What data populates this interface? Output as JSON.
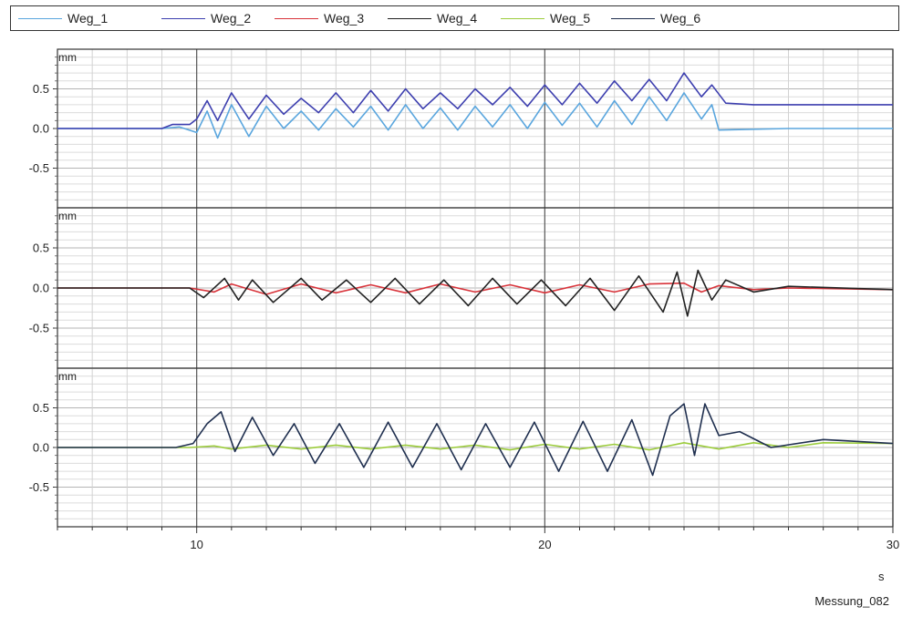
{
  "chart_data": {
    "type": "line",
    "legend_placement": "top",
    "x_unit": "s",
    "xlim": [
      6,
      30
    ],
    "x_ticks": [
      10,
      20,
      30
    ],
    "grid": true,
    "series_legend": [
      {
        "name": "Weg_1",
        "color": "#5aa6de"
      },
      {
        "name": "Weg_2",
        "color": "#3d3faf"
      },
      {
        "name": "Weg_3",
        "color": "#d8333a"
      },
      {
        "name": "Weg_4",
        "color": "#222222"
      },
      {
        "name": "Weg_5",
        "color": "#9ccc3c"
      },
      {
        "name": "Weg_6",
        "color": "#1f2f4f"
      }
    ],
    "panels": [
      {
        "y_unit": "mm",
        "ylim": [
          -1.0,
          1.0
        ],
        "y_ticks": [
          0.5,
          0.0,
          -0.5
        ],
        "y_tick_labels": [
          "0.5",
          "0.0",
          "-0.5"
        ],
        "series": [
          {
            "name": "Weg_1",
            "color": "#5aa6de",
            "x": [
              6,
              9,
              9.5,
              10,
              10.3,
              10.6,
              11,
              11.5,
              12,
              12.5,
              13,
              13.5,
              14,
              14.5,
              15,
              15.5,
              16,
              16.5,
              17,
              17.5,
              18,
              18.5,
              19,
              19.5,
              20,
              20.5,
              21,
              21.5,
              22,
              22.5,
              23,
              23.5,
              24,
              24.5,
              24.8,
              25,
              27,
              30
            ],
            "y": [
              0,
              0,
              0.02,
              -0.05,
              0.22,
              -0.12,
              0.3,
              -0.1,
              0.28,
              0,
              0.22,
              -0.02,
              0.25,
              0.02,
              0.28,
              -0.02,
              0.3,
              0.0,
              0.26,
              -0.02,
              0.28,
              0.02,
              0.3,
              0.0,
              0.33,
              0.04,
              0.32,
              0.02,
              0.35,
              0.05,
              0.4,
              0.1,
              0.45,
              0.12,
              0.3,
              -0.02,
              0,
              0
            ]
          },
          {
            "name": "Weg_2",
            "color": "#3d3faf",
            "x": [
              6,
              9,
              9.3,
              9.8,
              10,
              10.3,
              10.6,
              11,
              11.5,
              12,
              12.5,
              13,
              13.5,
              14,
              14.5,
              15,
              15.5,
              16,
              16.5,
              17,
              17.5,
              18,
              18.5,
              19,
              19.5,
              20,
              20.5,
              21,
              21.5,
              22,
              22.5,
              23,
              23.5,
              24,
              24.5,
              24.8,
              25.2,
              26,
              28,
              30
            ],
            "y": [
              0,
              0,
              0.05,
              0.05,
              0.12,
              0.35,
              0.1,
              0.45,
              0.12,
              0.42,
              0.18,
              0.38,
              0.2,
              0.45,
              0.2,
              0.48,
              0.22,
              0.5,
              0.25,
              0.45,
              0.25,
              0.5,
              0.3,
              0.52,
              0.28,
              0.55,
              0.3,
              0.57,
              0.32,
              0.6,
              0.35,
              0.62,
              0.35,
              0.7,
              0.4,
              0.55,
              0.32,
              0.3,
              0.3,
              0.3
            ]
          }
        ]
      },
      {
        "y_unit": "mm",
        "ylim": [
          -1.0,
          1.0
        ],
        "y_ticks": [
          0.5,
          0.0,
          -0.5
        ],
        "y_tick_labels": [
          "0.5",
          "0.0",
          "-0.5"
        ],
        "series": [
          {
            "name": "Weg_3",
            "color": "#d8333a",
            "x": [
              6,
              9.8,
              10.5,
              11,
              12,
              13,
              14,
              15,
              16,
              17,
              18,
              19,
              20,
              21,
              22,
              23,
              24,
              24.5,
              25,
              26,
              27,
              30
            ],
            "y": [
              0,
              0,
              -0.05,
              0.05,
              -0.08,
              0.05,
              -0.06,
              0.04,
              -0.06,
              0.05,
              -0.05,
              0.04,
              -0.06,
              0.04,
              -0.05,
              0.05,
              0.06,
              -0.05,
              0.03,
              -0.02,
              0,
              -0.02
            ]
          },
          {
            "name": "Weg_4",
            "color": "#222222",
            "x": [
              6,
              9.8,
              10.2,
              10.8,
              11.2,
              11.6,
              12.2,
              13,
              13.6,
              14.3,
              15,
              15.7,
              16.4,
              17.1,
              17.8,
              18.5,
              19.2,
              19.9,
              20.6,
              21.3,
              22,
              22.7,
              23.4,
              23.8,
              24.1,
              24.4,
              24.8,
              25.2,
              26,
              27,
              30
            ],
            "y": [
              0,
              0,
              -0.12,
              0.12,
              -0.15,
              0.1,
              -0.18,
              0.12,
              -0.15,
              0.1,
              -0.18,
              0.12,
              -0.2,
              0.1,
              -0.22,
              0.12,
              -0.2,
              0.1,
              -0.22,
              0.12,
              -0.28,
              0.15,
              -0.3,
              0.2,
              -0.35,
              0.22,
              -0.15,
              0.1,
              -0.05,
              0.02,
              -0.02
            ]
          }
        ]
      },
      {
        "y_unit": "mm",
        "ylim": [
          -1.0,
          1.0
        ],
        "y_ticks": [
          0.5,
          0.0,
          -0.5
        ],
        "y_tick_labels": [
          "0.5",
          "0.0",
          "-0.5"
        ],
        "series": [
          {
            "name": "Weg_5",
            "color": "#9ccc3c",
            "x": [
              6,
              9.8,
              10.5,
              11,
              12,
              13,
              14,
              15,
              16,
              17,
              18,
              19,
              20,
              21,
              22,
              23,
              24,
              25,
              26,
              27,
              28,
              30
            ],
            "y": [
              0,
              0,
              0.02,
              -0.02,
              0.03,
              -0.02,
              0.03,
              -0.02,
              0.03,
              -0.02,
              0.03,
              -0.03,
              0.04,
              -0.02,
              0.04,
              -0.03,
              0.06,
              -0.02,
              0.06,
              0.0,
              0.06,
              0.05
            ]
          },
          {
            "name": "Weg_6",
            "color": "#1f2f4f",
            "x": [
              6,
              9.4,
              9.9,
              10.3,
              10.7,
              11.1,
              11.6,
              12.2,
              12.8,
              13.4,
              14.1,
              14.8,
              15.5,
              16.2,
              16.9,
              17.6,
              18.3,
              19,
              19.7,
              20.4,
              21.1,
              21.8,
              22.5,
              23.1,
              23.6,
              24,
              24.3,
              24.6,
              25,
              25.6,
              26.5,
              28,
              30
            ],
            "y": [
              0,
              0,
              0.05,
              0.3,
              0.45,
              -0.05,
              0.38,
              -0.1,
              0.3,
              -0.2,
              0.3,
              -0.25,
              0.32,
              -0.25,
              0.3,
              -0.28,
              0.3,
              -0.25,
              0.32,
              -0.3,
              0.33,
              -0.3,
              0.35,
              -0.35,
              0.4,
              0.55,
              -0.1,
              0.55,
              0.15,
              0.2,
              0.0,
              0.1,
              0.05
            ]
          }
        ]
      }
    ]
  },
  "footer": {
    "label": "Messung_082"
  }
}
